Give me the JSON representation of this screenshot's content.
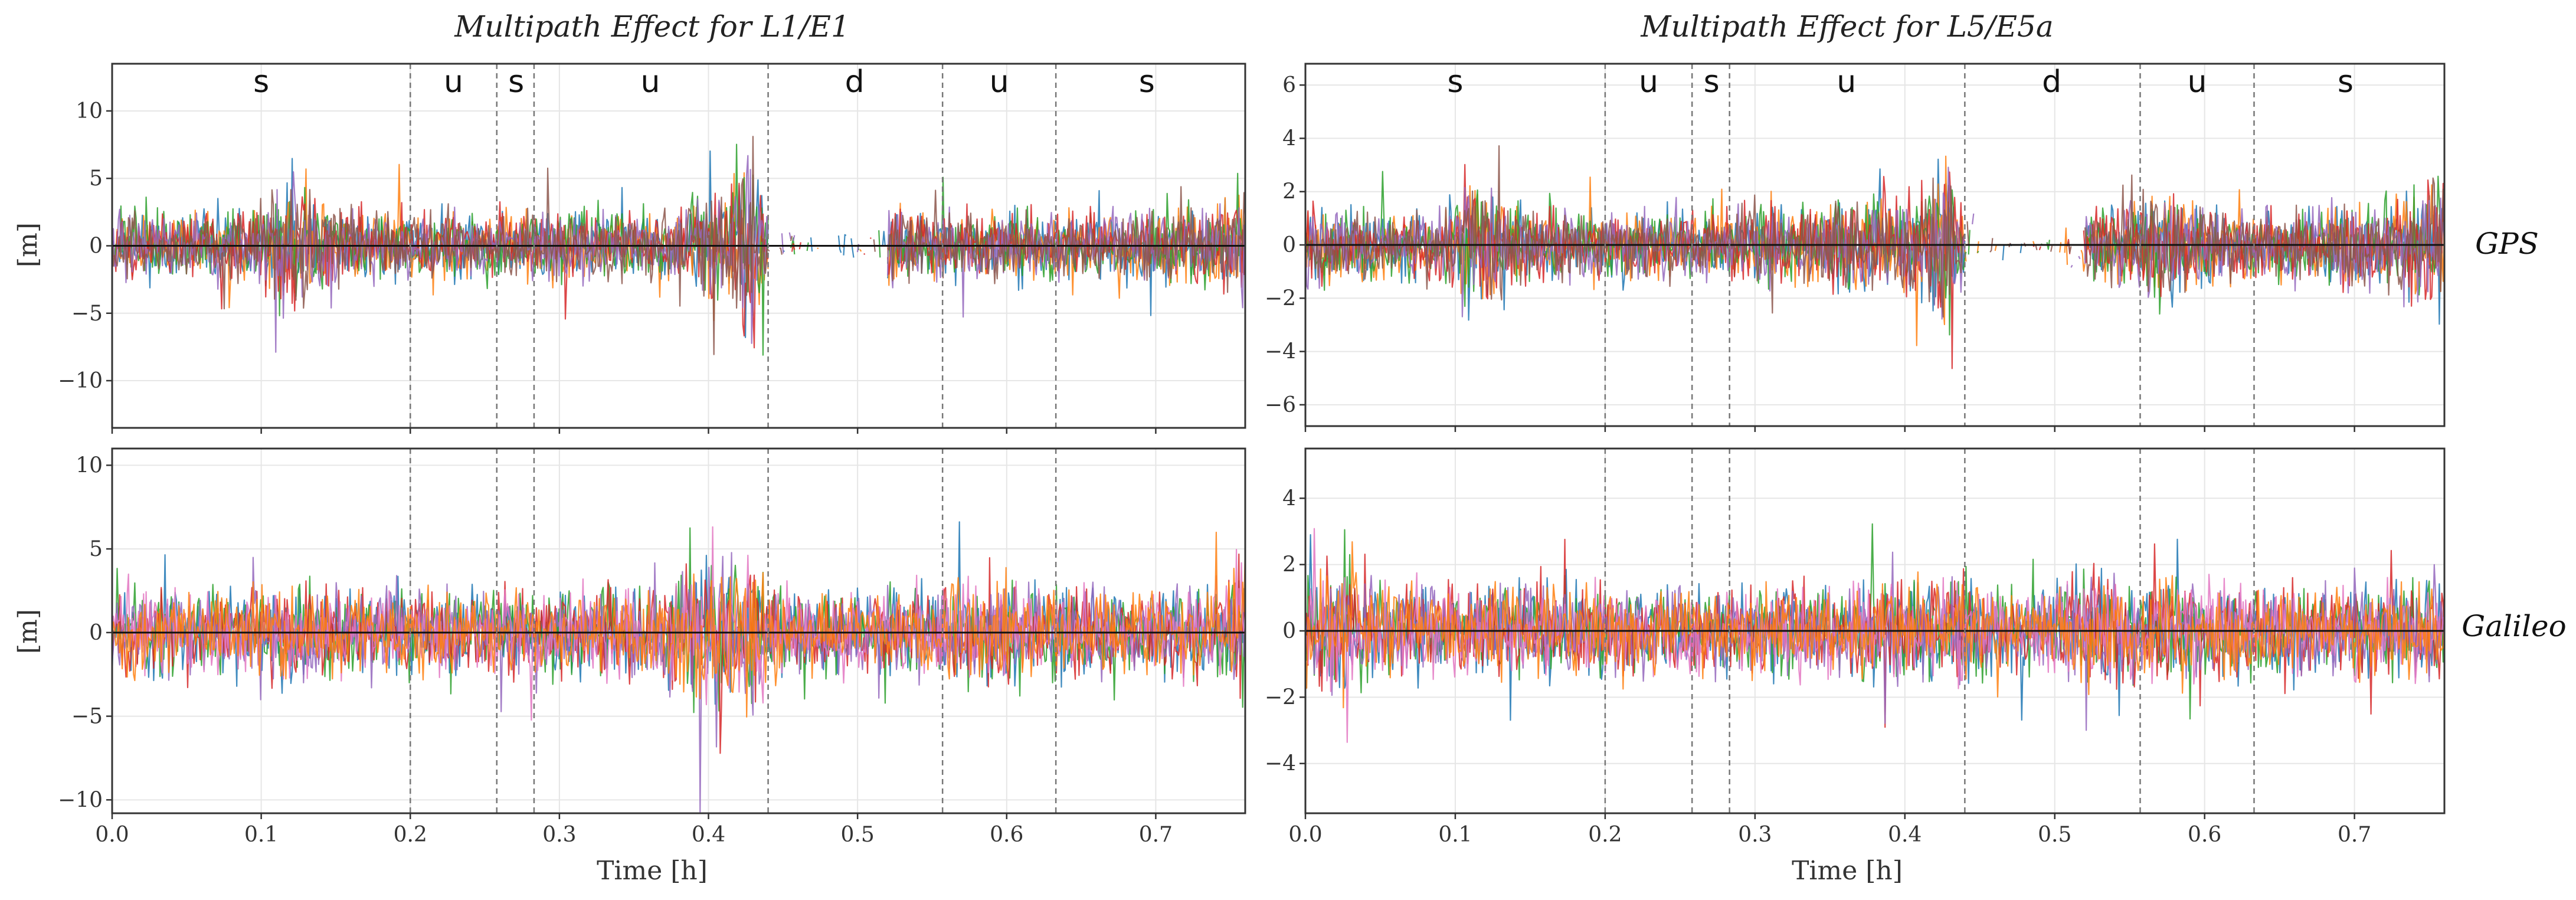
{
  "figure": {
    "column_titles": [
      "Multipath Effect for L1/E1",
      "Multipath Effect for L5/E5a"
    ],
    "row_labels": [
      "GPS",
      "Galileo"
    ],
    "x_axis_label": "Time [h]",
    "y_axis_label": "[m]"
  },
  "chart_data": [
    {
      "type": "line",
      "title": "Multipath Effect for L1/E1",
      "row": "GPS",
      "xlabel": "",
      "ylabel": "[m]",
      "xlim": [
        0.0,
        0.76
      ],
      "ylim": [
        -13.5,
        13.5
      ],
      "xticks": [
        0.0,
        0.1,
        0.2,
        0.3,
        0.4,
        0.5,
        0.6,
        0.7
      ],
      "xtick_labels": [],
      "yticks": [
        -10,
        -5,
        0,
        5,
        10
      ],
      "ytick_labels": [
        "−10",
        "−5",
        "0",
        "5",
        "10"
      ],
      "grid": true,
      "zero_line": true,
      "envelope": {
        "x": [
          0.0,
          0.03,
          0.06,
          0.09,
          0.11,
          0.12,
          0.14,
          0.17,
          0.2,
          0.23,
          0.26,
          0.28,
          0.3,
          0.33,
          0.36,
          0.38,
          0.4,
          0.41,
          0.42,
          0.43,
          0.44,
          0.46,
          0.48,
          0.5,
          0.52,
          0.54,
          0.56,
          0.58,
          0.6,
          0.62,
          0.64,
          0.67,
          0.7,
          0.73,
          0.76
        ],
        "amplitude": [
          3.2,
          3.0,
          2.8,
          3.0,
          4.5,
          6.5,
          4.0,
          3.2,
          2.8,
          3.0,
          2.8,
          3.0,
          3.5,
          3.0,
          2.8,
          3.5,
          5.0,
          5.5,
          7.0,
          8.5,
          3.0,
          1.2,
          1.0,
          1.3,
          3.5,
          3.0,
          3.0,
          3.2,
          3.0,
          3.2,
          3.0,
          3.0,
          3.2,
          3.5,
          4.5
        ]
      },
      "sparse_intervals": [
        [
          0.44,
          0.52
        ]
      ],
      "series": [
        {
          "name": "sat-blue",
          "color": "#1f77b4",
          "seed": 11
        },
        {
          "name": "sat-orange",
          "color": "#ff7f0e",
          "seed": 12
        },
        {
          "name": "sat-green",
          "color": "#2ca02c",
          "seed": 13
        },
        {
          "name": "sat-red",
          "color": "#d62728",
          "seed": 14
        },
        {
          "name": "sat-purple",
          "color": "#9467bd",
          "seed": 15
        },
        {
          "name": "sat-brown",
          "color": "#8c564b",
          "seed": 16
        }
      ],
      "region_boundaries": [
        0.2,
        0.258,
        0.283,
        0.44,
        0.557,
        0.633
      ],
      "region_labels": [
        {
          "x": 0.1,
          "label": "s"
        },
        {
          "x": 0.229,
          "label": "u"
        },
        {
          "x": 0.271,
          "label": "s"
        },
        {
          "x": 0.361,
          "label": "u"
        },
        {
          "x": 0.498,
          "label": "d"
        },
        {
          "x": 0.595,
          "label": "u"
        },
        {
          "x": 0.694,
          "label": "s"
        }
      ]
    },
    {
      "type": "line",
      "title": "Multipath Effect for L5/E5a",
      "row": "GPS",
      "xlabel": "",
      "ylabel": "",
      "xlim": [
        0.0,
        0.76
      ],
      "ylim": [
        -6.8,
        6.8
      ],
      "xticks": [
        0.0,
        0.1,
        0.2,
        0.3,
        0.4,
        0.5,
        0.6,
        0.7
      ],
      "xtick_labels": [],
      "yticks": [
        -6,
        -4,
        -2,
        0,
        2,
        4,
        6
      ],
      "ytick_labels": [
        "−6",
        "−4",
        "−2",
        "0",
        "2",
        "4",
        "6"
      ],
      "grid": true,
      "zero_line": true,
      "envelope": {
        "x": [
          0.0,
          0.03,
          0.06,
          0.09,
          0.11,
          0.14,
          0.17,
          0.2,
          0.23,
          0.26,
          0.28,
          0.3,
          0.33,
          0.36,
          0.38,
          0.4,
          0.42,
          0.43,
          0.44,
          0.46,
          0.48,
          0.5,
          0.52,
          0.54,
          0.56,
          0.58,
          0.6,
          0.63,
          0.67,
          0.7,
          0.73,
          0.76
        ],
        "amplitude": [
          2.0,
          1.6,
          1.5,
          1.6,
          3.0,
          1.8,
          1.6,
          1.5,
          1.5,
          1.6,
          1.4,
          1.8,
          1.6,
          2.2,
          2.0,
          2.2,
          3.5,
          4.5,
          1.2,
          0.5,
          0.4,
          0.5,
          1.8,
          1.8,
          2.2,
          2.5,
          1.8,
          1.5,
          1.6,
          1.8,
          2.2,
          2.8
        ]
      },
      "sparse_intervals": [
        [
          0.44,
          0.52
        ]
      ],
      "series": [
        {
          "name": "sat-blue",
          "color": "#1f77b4",
          "seed": 21
        },
        {
          "name": "sat-orange",
          "color": "#ff7f0e",
          "seed": 22
        },
        {
          "name": "sat-green",
          "color": "#2ca02c",
          "seed": 23
        },
        {
          "name": "sat-red",
          "color": "#d62728",
          "seed": 24
        },
        {
          "name": "sat-purple",
          "color": "#9467bd",
          "seed": 25
        },
        {
          "name": "sat-brown",
          "color": "#8c564b",
          "seed": 26
        }
      ],
      "region_boundaries": [
        0.2,
        0.258,
        0.283,
        0.44,
        0.557,
        0.633
      ],
      "region_labels": [
        {
          "x": 0.1,
          "label": "s"
        },
        {
          "x": 0.229,
          "label": "u"
        },
        {
          "x": 0.271,
          "label": "s"
        },
        {
          "x": 0.361,
          "label": "u"
        },
        {
          "x": 0.498,
          "label": "d"
        },
        {
          "x": 0.595,
          "label": "u"
        },
        {
          "x": 0.694,
          "label": "s"
        }
      ]
    },
    {
      "type": "line",
      "title": "",
      "row": "Galileo",
      "xlabel": "Time [h]",
      "ylabel": "[m]",
      "xlim": [
        0.0,
        0.76
      ],
      "ylim": [
        -10.8,
        11.0
      ],
      "xticks": [
        0.0,
        0.1,
        0.2,
        0.3,
        0.4,
        0.5,
        0.6,
        0.7
      ],
      "xtick_labels": [
        "0.0",
        "0.1",
        "0.2",
        "0.3",
        "0.4",
        "0.5",
        "0.6",
        "0.7"
      ],
      "yticks": [
        -10,
        -5,
        0,
        5,
        10
      ],
      "ytick_labels": [
        "−10",
        "−5",
        "0",
        "5",
        "10"
      ],
      "grid": true,
      "zero_line": true,
      "envelope": {
        "x": [
          0.0,
          0.03,
          0.06,
          0.09,
          0.12,
          0.15,
          0.18,
          0.21,
          0.24,
          0.27,
          0.3,
          0.33,
          0.36,
          0.38,
          0.39,
          0.4,
          0.42,
          0.43,
          0.44,
          0.46,
          0.5,
          0.53,
          0.56,
          0.58,
          0.6,
          0.63,
          0.66,
          0.7,
          0.73,
          0.75,
          0.76
        ],
        "amplitude": [
          3.0,
          3.2,
          3.0,
          3.2,
          3.5,
          3.5,
          3.0,
          3.0,
          3.0,
          3.0,
          3.0,
          3.2,
          3.2,
          3.8,
          6.0,
          5.5,
          5.0,
          6.5,
          3.2,
          2.8,
          3.0,
          3.2,
          3.6,
          4.0,
          4.2,
          3.2,
          3.0,
          3.0,
          3.2,
          4.0,
          5.5
        ]
      },
      "sparse_intervals": [],
      "series": [
        {
          "name": "sat-blue",
          "color": "#1f77b4",
          "seed": 31
        },
        {
          "name": "sat-green",
          "color": "#2ca02c",
          "seed": 32
        },
        {
          "name": "sat-red",
          "color": "#d62728",
          "seed": 33
        },
        {
          "name": "sat-purple",
          "color": "#9467bd",
          "seed": 34
        },
        {
          "name": "sat-pink",
          "color": "#e377c2",
          "seed": 35
        },
        {
          "name": "sat-orange",
          "color": "#ff7f0e",
          "seed": 36
        }
      ],
      "region_boundaries": [
        0.2,
        0.258,
        0.283,
        0.44,
        0.557,
        0.633
      ],
      "region_labels": []
    },
    {
      "type": "line",
      "title": "",
      "row": "Galileo",
      "xlabel": "Time [h]",
      "ylabel": "",
      "xlim": [
        0.0,
        0.76
      ],
      "ylim": [
        -5.5,
        5.5
      ],
      "xticks": [
        0.0,
        0.1,
        0.2,
        0.3,
        0.4,
        0.5,
        0.6,
        0.7
      ],
      "xtick_labels": [
        "0.0",
        "0.1",
        "0.2",
        "0.3",
        "0.4",
        "0.5",
        "0.6",
        "0.7"
      ],
      "yticks": [
        -4,
        -2,
        0,
        2,
        4
      ],
      "ytick_labels": [
        "−4",
        "−2",
        "0",
        "2",
        "4"
      ],
      "grid": true,
      "zero_line": true,
      "envelope": {
        "x": [
          0.0,
          0.03,
          0.06,
          0.09,
          0.12,
          0.15,
          0.18,
          0.21,
          0.24,
          0.27,
          0.3,
          0.33,
          0.36,
          0.39,
          0.42,
          0.44,
          0.46,
          0.5,
          0.53,
          0.56,
          0.6,
          0.63,
          0.66,
          0.7,
          0.73,
          0.76
        ],
        "amplitude": [
          1.8,
          2.2,
          1.8,
          1.6,
          1.7,
          1.7,
          1.7,
          1.6,
          1.6,
          1.5,
          1.6,
          1.6,
          1.6,
          2.0,
          1.7,
          2.5,
          1.4,
          1.5,
          2.2,
          1.8,
          1.9,
          1.8,
          1.6,
          1.6,
          1.7,
          1.8
        ]
      },
      "sparse_intervals": [],
      "series": [
        {
          "name": "sat-blue",
          "color": "#1f77b4",
          "seed": 41
        },
        {
          "name": "sat-green",
          "color": "#2ca02c",
          "seed": 42
        },
        {
          "name": "sat-red",
          "color": "#d62728",
          "seed": 43
        },
        {
          "name": "sat-purple",
          "color": "#9467bd",
          "seed": 44
        },
        {
          "name": "sat-pink",
          "color": "#e377c2",
          "seed": 45
        },
        {
          "name": "sat-orange",
          "color": "#ff7f0e",
          "seed": 46
        }
      ],
      "region_boundaries": [
        0.2,
        0.258,
        0.283,
        0.44,
        0.557,
        0.633
      ],
      "region_labels": []
    }
  ]
}
